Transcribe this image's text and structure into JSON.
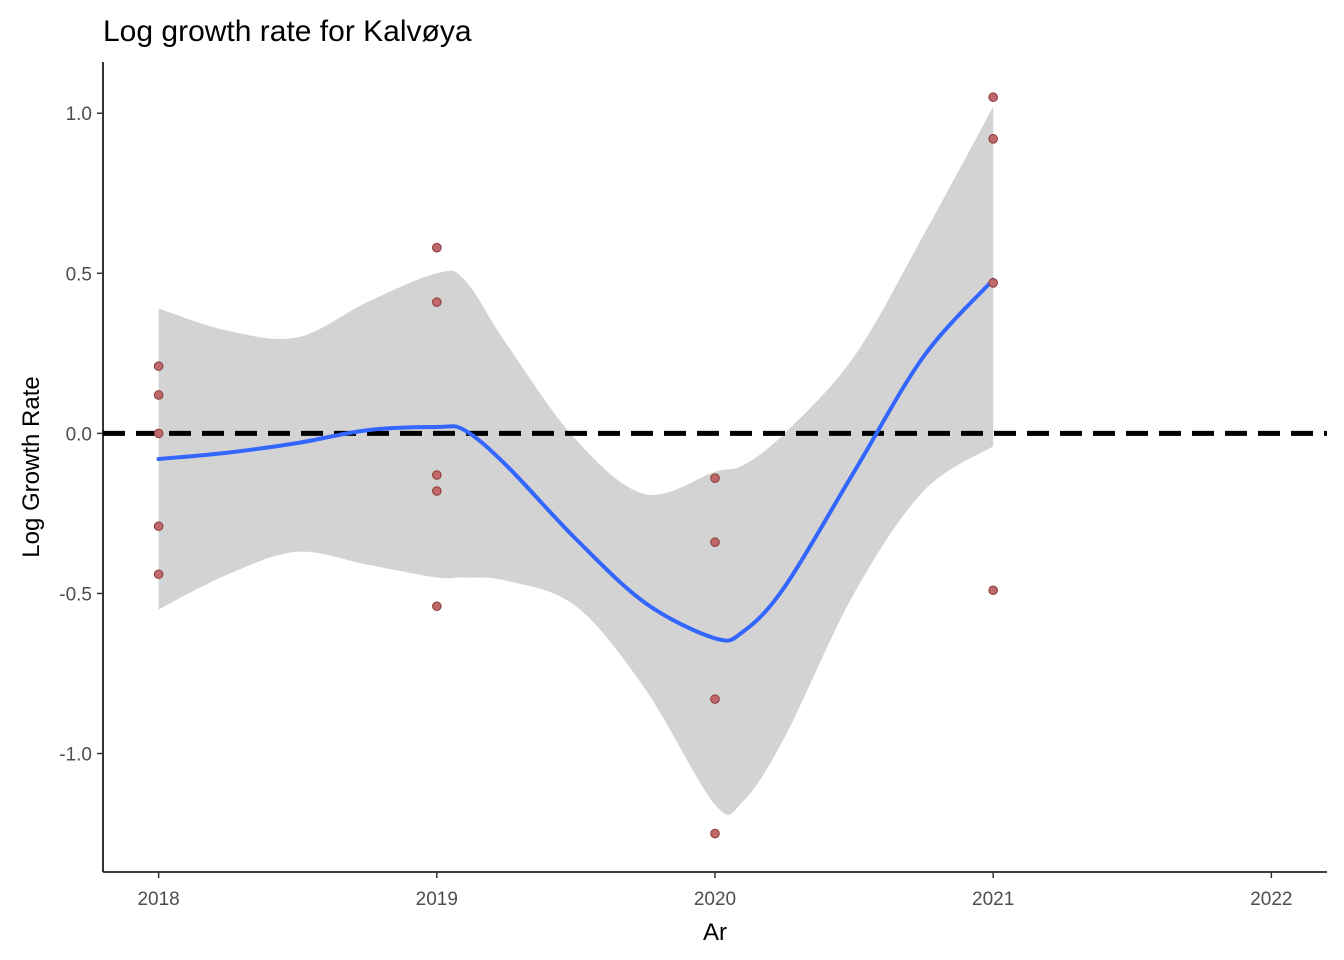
{
  "chart_data": {
    "type": "scatter",
    "title": "Log growth rate for Kalvøya",
    "xlabel": "Ar",
    "ylabel": "Log Growth Rate",
    "xlim": [
      2017.8,
      2022.2
    ],
    "ylim": [
      -1.37,
      1.16
    ],
    "x_ticks": [
      2018,
      2019,
      2020,
      2021,
      2022
    ],
    "y_ticks": [
      -1.0,
      -0.5,
      0.0,
      0.5,
      1.0
    ],
    "x_tick_labels": [
      "2018",
      "2019",
      "2020",
      "2021",
      "2022"
    ],
    "y_tick_labels": [
      "-1.0",
      "-0.5",
      "0.0",
      "0.5",
      "1.0"
    ],
    "grid": false,
    "reference_line": {
      "y": 0,
      "style": "dashed",
      "color": "#000000"
    },
    "points": {
      "color": "#c0696b",
      "stroke": "#8b3a3a",
      "data": [
        {
          "x": 2018,
          "y": 0.21
        },
        {
          "x": 2018,
          "y": 0.12
        },
        {
          "x": 2018,
          "y": 0.0
        },
        {
          "x": 2018,
          "y": -0.29
        },
        {
          "x": 2018,
          "y": -0.44
        },
        {
          "x": 2019,
          "y": 0.58
        },
        {
          "x": 2019,
          "y": 0.41
        },
        {
          "x": 2019,
          "y": -0.13
        },
        {
          "x": 2019,
          "y": -0.18
        },
        {
          "x": 2019,
          "y": -0.54
        },
        {
          "x": 2020,
          "y": -0.14
        },
        {
          "x": 2020,
          "y": -0.34
        },
        {
          "x": 2020,
          "y": -0.83
        },
        {
          "x": 2020,
          "y": -1.25
        },
        {
          "x": 2021,
          "y": 1.05
        },
        {
          "x": 2021,
          "y": 0.92
        },
        {
          "x": 2021,
          "y": 0.47
        },
        {
          "x": 2021,
          "y": -0.49
        }
      ]
    },
    "smooth": {
      "color": "#3366ff",
      "band_color": "#d3d3d3",
      "x": [
        2018.0,
        2018.25,
        2018.5,
        2018.75,
        2019.0,
        2019.1,
        2019.25,
        2019.5,
        2019.75,
        2020.0,
        2020.1,
        2020.25,
        2020.5,
        2020.75,
        2021.0
      ],
      "y": [
        -0.08,
        -0.06,
        -0.03,
        0.01,
        0.02,
        0.01,
        -0.1,
        -0.33,
        -0.53,
        -0.64,
        -0.62,
        -0.48,
        -0.12,
        0.24,
        0.48
      ],
      "lower": [
        -0.55,
        -0.44,
        -0.37,
        -0.41,
        -0.45,
        -0.45,
        -0.46,
        -0.54,
        -0.8,
        -1.16,
        -1.15,
        -0.95,
        -0.5,
        -0.18,
        -0.04
      ],
      "upper": [
        0.39,
        0.32,
        0.3,
        0.41,
        0.5,
        0.48,
        0.28,
        -0.02,
        -0.19,
        -0.12,
        -0.1,
        0.0,
        0.24,
        0.62,
        1.02
      ]
    }
  }
}
